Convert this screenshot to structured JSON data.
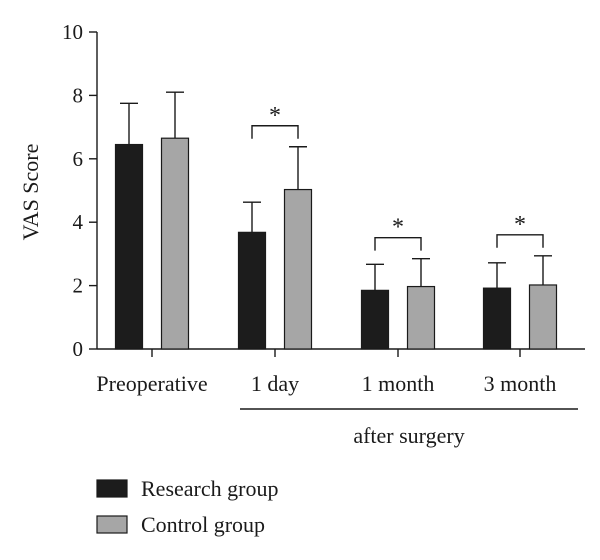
{
  "chart_data": {
    "type": "bar",
    "categories": [
      "Preoperative",
      "1 day",
      "1 month",
      "3 month"
    ],
    "series": [
      {
        "name": "Research group",
        "values": [
          6.45,
          3.68,
          1.85,
          1.92
        ],
        "errors": [
          1.3,
          0.95,
          0.82,
          0.8
        ],
        "color": "#1c1c1c"
      },
      {
        "name": "Control group",
        "values": [
          6.65,
          5.03,
          1.97,
          2.02
        ],
        "errors": [
          1.45,
          1.35,
          0.88,
          0.92
        ],
        "color": "#a6a6a6"
      }
    ],
    "ylabel": "VAS Score",
    "ylim": [
      0,
      10
    ],
    "yticks": [
      "0",
      "2",
      "4",
      "6",
      "8",
      "10"
    ],
    "group_label": "after surgery",
    "significance": [
      {
        "category": 1,
        "label": "*"
      },
      {
        "category": 2,
        "label": "*"
      },
      {
        "category": 3,
        "label": "*"
      }
    ],
    "grid": false,
    "legend_position": "bottom-left"
  }
}
